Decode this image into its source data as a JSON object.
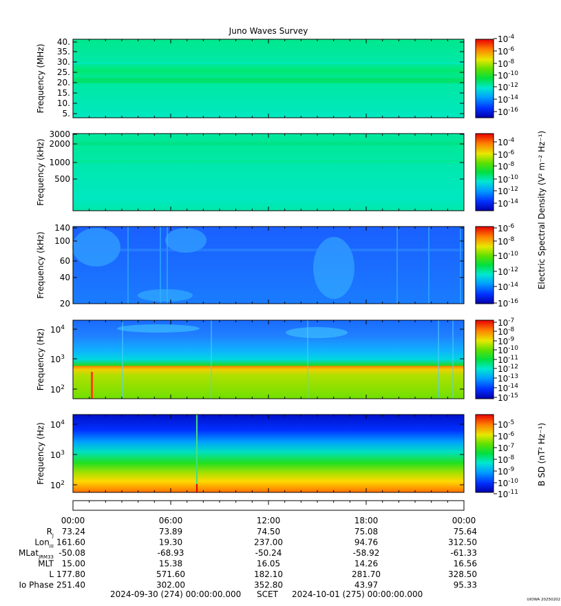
{
  "chart_data": {
    "type": "heatmap",
    "title": "Juno Waves Survey",
    "panels": [
      {
        "ylabel": "Frequency (MHz)",
        "yticks": [
          "40.",
          "35.",
          "30.",
          "25.",
          "20.",
          "15.",
          "10.",
          "5."
        ],
        "cbar_ticks": [
          {
            "base": "10",
            "exp": "-4"
          },
          {
            "base": "10",
            "exp": "-6"
          },
          {
            "base": "10",
            "exp": "-8"
          },
          {
            "base": "10",
            "exp": "-10"
          },
          {
            "base": "10",
            "exp": "-12"
          },
          {
            "base": "10",
            "exp": "-14"
          },
          {
            "base": "10",
            "exp": "-16"
          }
        ]
      },
      {
        "ylabel": "Frequency (kHz)",
        "yticks": [
          "3000",
          "2000",
          "1000",
          "500"
        ],
        "cbar_ticks": [
          {
            "base": "10",
            "exp": "-4"
          },
          {
            "base": "10",
            "exp": "-6"
          },
          {
            "base": "10",
            "exp": "-8"
          },
          {
            "base": "10",
            "exp": "-10"
          },
          {
            "base": "10",
            "exp": "-12"
          },
          {
            "base": "10",
            "exp": "-14"
          }
        ]
      },
      {
        "ylabel": "Frequency (kHz)",
        "yticks": [
          "140",
          "100",
          "60",
          "40",
          "20"
        ],
        "cbar_ticks": [
          {
            "base": "10",
            "exp": "-6"
          },
          {
            "base": "10",
            "exp": "-8"
          },
          {
            "base": "10",
            "exp": "-10"
          },
          {
            "base": "10",
            "exp": "-12"
          },
          {
            "base": "10",
            "exp": "-14"
          },
          {
            "base": "10",
            "exp": "-16"
          }
        ]
      },
      {
        "ylabel": "Frequency (Hz)",
        "yticks": [
          {
            "base": "10",
            "exp": "4"
          },
          {
            "base": "10",
            "exp": "3"
          },
          {
            "base": "10",
            "exp": "2"
          }
        ],
        "cbar_ticks": [
          {
            "base": "10",
            "exp": "-7"
          },
          {
            "base": "10",
            "exp": "-8"
          },
          {
            "base": "10",
            "exp": "-9"
          },
          {
            "base": "10",
            "exp": "-10"
          },
          {
            "base": "10",
            "exp": "-11"
          },
          {
            "base": "10",
            "exp": "-12"
          },
          {
            "base": "10",
            "exp": "-13"
          },
          {
            "base": "10",
            "exp": "-14"
          },
          {
            "base": "10",
            "exp": "-15"
          }
        ]
      },
      {
        "ylabel": "Frequency (Hz)",
        "yticks": [
          {
            "base": "10",
            "exp": "4"
          },
          {
            "base": "10",
            "exp": "3"
          },
          {
            "base": "10",
            "exp": "2"
          }
        ],
        "cbar_ticks": [
          {
            "base": "10",
            "exp": "-5"
          },
          {
            "base": "10",
            "exp": "-6"
          },
          {
            "base": "10",
            "exp": "-7"
          },
          {
            "base": "10",
            "exp": "-8"
          },
          {
            "base": "10",
            "exp": "-9"
          },
          {
            "base": "10",
            "exp": "-10"
          },
          {
            "base": "10",
            "exp": "-11"
          }
        ]
      }
    ],
    "electric_cbar_label": "Electric Spectral Density (V² m⁻² Hz⁻¹)",
    "magnetic_cbar_label": "B SD (nT² Hz⁻¹)",
    "xtick_labels": [
      "00:00",
      "06:00",
      "12:00",
      "18:00",
      "00:00"
    ],
    "ephemeris": [
      {
        "label": "R",
        "sub": "J",
        "values": [
          "73.24",
          "73.89",
          "74.50",
          "75.08",
          "75.64"
        ]
      },
      {
        "label": "Lon",
        "sub": "III",
        "values": [
          "161.60",
          "19.30",
          "237.00",
          "94.76",
          "312.50"
        ]
      },
      {
        "label": "MLat",
        "sub": "JRM33",
        "values": [
          "-50.08",
          "-68.93",
          "-50.24",
          "-58.92",
          "-61.33"
        ]
      },
      {
        "label": "MLT",
        "sub": "",
        "values": [
          "15.00",
          "15.38",
          "16.05",
          "14.26",
          "16.56"
        ]
      },
      {
        "label": "L",
        "sub": "",
        "values": [
          "177.80",
          "571.60",
          "182.10",
          "281.70",
          "328.50"
        ]
      },
      {
        "label": "Io Phase",
        "sub": "",
        "values": [
          "251.40",
          "302.00",
          "352.80",
          "43.97",
          "95.33"
        ]
      }
    ],
    "time_range": {
      "start": "2024-09-30 (274) 00:00:00.000",
      "label": "SCET",
      "end": "2024-10-01 (275) 00:00:00.000"
    },
    "footer_tag": "UIOWA 20250202"
  }
}
